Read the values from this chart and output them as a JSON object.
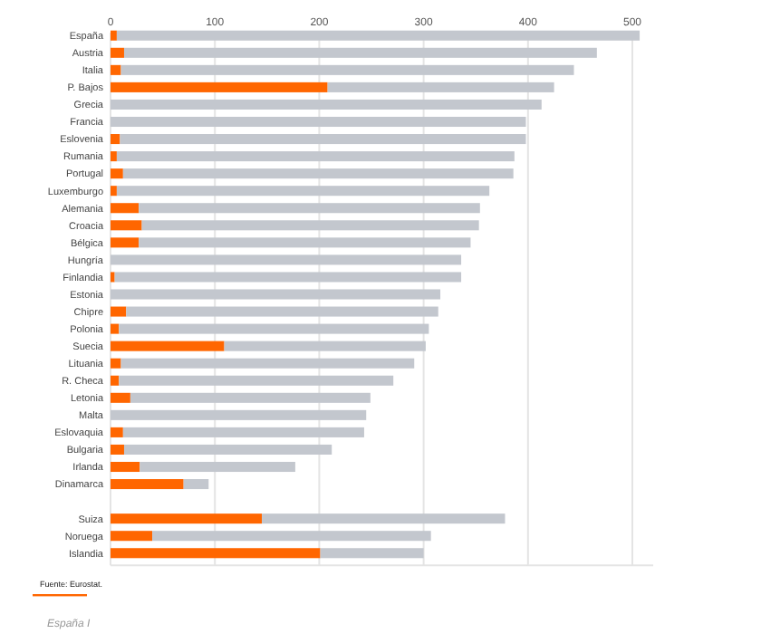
{
  "chart_data": {
    "type": "bar",
    "orientation": "horizontal",
    "stacked": true,
    "categories": [
      "España",
      "Austria",
      "Italia",
      "P. Bajos",
      "Grecia",
      "Francia",
      "Eslovenia",
      "Rumania",
      "Portugal",
      "Luxemburgo",
      "Alemania",
      "Croacia",
      "Bélgica",
      "Hungría",
      "Finlandia",
      "Estonia",
      "Chipre",
      "Polonia",
      "Suecia",
      "Lituania",
      "R. Checa",
      "Letonia",
      "Malta",
      "Eslovaquia",
      "Bulgaria",
      "Irlanda",
      "Dinamarca",
      null,
      "Suiza",
      "Noruega",
      "Islandia"
    ],
    "series": [
      {
        "color": "#ff6600",
        "values": [
          6,
          13,
          10,
          208,
          null,
          null,
          9,
          6,
          12,
          6,
          27,
          30,
          27,
          null,
          4,
          null,
          15,
          8,
          109,
          10,
          8,
          19,
          null,
          12,
          13,
          28,
          70,
          null,
          145,
          40,
          201
        ]
      },
      {
        "color": "#c3c7ce",
        "values": [
          501,
          453,
          434,
          217,
          413,
          398,
          389,
          381,
          374,
          357,
          327,
          323,
          318,
          336,
          332,
          316,
          299,
          297,
          193,
          281,
          263,
          230,
          245,
          231,
          199,
          149,
          24,
          null,
          233,
          267,
          99
        ]
      }
    ],
    "xlim": [
      0,
      520
    ],
    "xticks": [
      0,
      100,
      200,
      300,
      400,
      500
    ],
    "grid": "x",
    "annotations": [
      "Fuente: Eurostat.",
      "España I"
    ]
  }
}
